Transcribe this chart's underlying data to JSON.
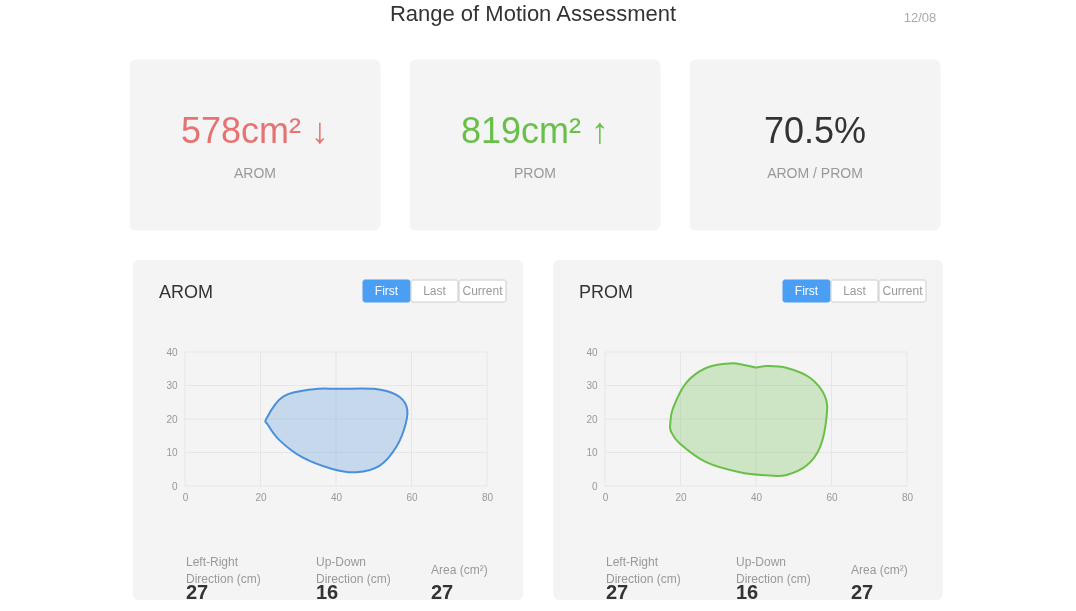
{
  "chart_data": [
    {
      "type": "other",
      "title": "Range of Motion Assessment",
      "subtitle": "12/08",
      "annotations": [
        "578cm² ↓",
        "AROM",
        "819cm² ↑",
        "PROM",
        "70.5%",
        "AROM / PROM"
      ]
    },
    {
      "type": "area",
      "title": "AROM",
      "xlim": [
        0,
        80
      ],
      "xticks": [
        0,
        20,
        40,
        60,
        80
      ],
      "ylim": [
        0,
        40
      ],
      "yticks": [
        0,
        10,
        20,
        30,
        40
      ],
      "grid": true,
      "series": [
        {
          "color": "#4a90d9",
          "x": [
            21.6,
            26,
            34,
            41,
            50,
            56,
            58.7,
            58.5,
            56,
            51.6,
            45.4,
            39,
            31,
            25,
            22
          ],
          "values": [
            20.2,
            26.7,
            28.9,
            29,
            29,
            27.2,
            23.7,
            18.7,
            11.7,
            6.1,
            4.1,
            5.1,
            8.6,
            13.7,
            18.2
          ]
        }
      ],
      "annotations": [
        "First",
        "Last",
        "Current",
        "Left-Right\nDirection (cm)",
        "27",
        "Up-Down\nDirection (cm)",
        "16",
        "Area (cm²)",
        "27"
      ]
    },
    {
      "type": "area",
      "title": "PROM",
      "xlim": [
        0,
        80
      ],
      "xticks": [
        0,
        20,
        40,
        60,
        80
      ],
      "ylim": [
        0,
        40
      ],
      "yticks": [
        0,
        10,
        20,
        30,
        40
      ],
      "grid": true,
      "series": [
        {
          "color": "#6abf4b",
          "x": [
            17.3,
            18,
            21.5,
            26.9,
            33,
            37.5,
            40,
            42.8,
            48,
            54.3,
            58.3,
            58.7,
            57,
            53.4,
            48.1,
            43.7,
            35.7,
            26.8,
            19.8,
            17.5
          ],
          "values": [
            18.7,
            23.2,
            30.8,
            35.3,
            36.6,
            36,
            35.4,
            35.8,
            35.3,
            32.3,
            26.7,
            20.7,
            11.7,
            6.1,
            3.3,
            3.1,
            4.1,
            7.1,
            12.7,
            16.2
          ]
        }
      ],
      "annotations": [
        "First",
        "Last",
        "Current",
        "Left-Right\nDirection (cm)",
        "27",
        "Up-Down\nDirection (cm)",
        "16",
        "Area (cm²)",
        "27"
      ]
    }
  ]
}
